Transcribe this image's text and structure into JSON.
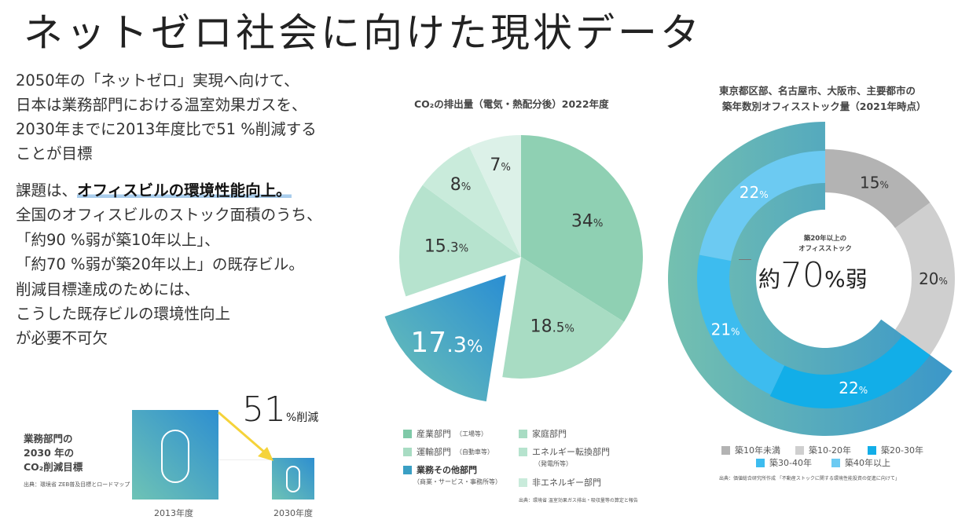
{
  "title": "ネットゼロ社会に向けた現状データ",
  "intro": {
    "lines": [
      "2050年の「ネットゼロ」実現へ向けて、",
      "日本は業務部門における温室効果ガスを、",
      "2030年までに2013年度比で51 %削減する",
      "ことが目標"
    ],
    "issue_prefix": "課題は、",
    "issue_highlight": "オフィスビルの環境性能向上。",
    "lines2": [
      "全国のオフィスビルのストック面積のうち、",
      "「約90 %弱が築10年以上」、",
      "「約70 %弱が築20年以上」の既存ビル。",
      "削減目標達成のためには、",
      "こうした既存ビルの環境性向上",
      "が必要不可欠"
    ]
  },
  "target": {
    "label_lines": [
      "業務部門の",
      "2030 年の",
      "CO₂削減目標"
    ],
    "source": "出典：環境省 ZEB普及目標とロードマップ",
    "reduction_number": "51",
    "reduction_unit": "%削減",
    "year_2013": "2013年度",
    "year_2030": "2030年度",
    "arrow_color": "#f5d33a"
  },
  "chart_data": [
    {
      "type": "pie",
      "title": "CO₂の排出量（電気・熱配分後）2022年度",
      "slices": [
        {
          "name": "産業部門（工場等）",
          "value": 34,
          "label": "34%",
          "color": "#8fd0b3"
        },
        {
          "name": "家庭部門",
          "value": 18.5,
          "label": "18.5%",
          "color": "#a8dcc3"
        },
        {
          "name": "業務その他部門（商業・サービス・事務所等）",
          "value": 17.3,
          "label": "17.3%",
          "color": "#3a9fc4",
          "exploded": true
        },
        {
          "name": "運輸部門（自動車等）",
          "value": 15.3,
          "label": "15.3%",
          "color": "#b6e3ce"
        },
        {
          "name": "エネルギー転換部門（発電所等）",
          "value": 8,
          "label": "8%",
          "color": "#c9ebdb"
        },
        {
          "name": "非エネルギー部門",
          "value": 7,
          "label": "7%",
          "color": "#dcf1e8"
        }
      ],
      "legend": [
        {
          "label": "産業部門",
          "sub": "（工場等）",
          "color": "#7fc9a8"
        },
        {
          "label": "家庭部門",
          "sub": "",
          "color": "#a8dcc3"
        },
        {
          "label": "運輸部門",
          "sub": "（自動車等）",
          "color": "#a8dcc3"
        },
        {
          "label": "エネルギー転換部門",
          "sub": "（発電所等）",
          "color": "#b6e3ce"
        },
        {
          "label": "業務その他部門",
          "sub": "（商業・サービス・事務所等）",
          "color": "#3a9fc4"
        },
        {
          "label": "非エネルギー部門",
          "sub": "",
          "color": "#c9ebdb"
        }
      ],
      "source": "出典：環境省 温室効果ガス排出・吸収量等の算定と報告"
    },
    {
      "type": "pie",
      "subtype": "donut",
      "title_lines": [
        "東京都区部、名古屋市、大阪市、主要都市の",
        "築年数別オフィスストック量（2021年時点）"
      ],
      "slices": [
        {
          "name": "築10年未満",
          "value": 15,
          "label": "15%",
          "color": "#b3b3b3"
        },
        {
          "name": "築10-20年",
          "value": 20,
          "label": "20%",
          "color": "#cfcfcf"
        },
        {
          "name": "築20-30年",
          "value": 22,
          "label": "22%",
          "color": "#12aee8"
        },
        {
          "name": "築30-40年",
          "value": 21,
          "label": "21%",
          "color": "#3dbcef"
        },
        {
          "name": "築40年以上",
          "value": 22,
          "label": "22%",
          "color": "#6ccaf2"
        }
      ],
      "center_caption_lines": [
        "築20年以上の",
        "オフィスストック"
      ],
      "center_prefix": "約",
      "center_value": "70",
      "center_suffix": "%弱",
      "highlight_color": "#6bb9b0",
      "source": "出典：価値総合研究所作成 「不動産ストックに関する環境性能投資の促進に向けて」"
    }
  ]
}
